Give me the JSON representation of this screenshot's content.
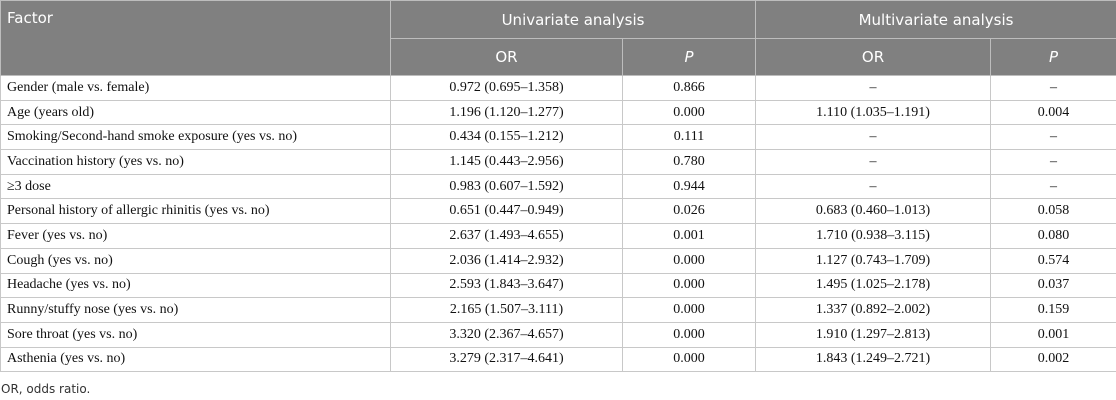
{
  "table": {
    "factor_header": "Factor",
    "groups": [
      "Univariate analysis",
      "Multivariate analysis"
    ],
    "subheaders": [
      "OR",
      "P",
      "OR",
      "P"
    ],
    "rows": [
      [
        "Gender (male vs. female)",
        "0.972 (0.695–1.358)",
        "0.866",
        "–",
        "–"
      ],
      [
        "Age (years old)",
        "1.196 (1.120–1.277)",
        "0.000",
        "1.110 (1.035–1.191)",
        "0.004"
      ],
      [
        "Smoking/Second-hand smoke exposure (yes vs. no)",
        "0.434 (0.155–1.212)",
        "0.111",
        "–",
        "–"
      ],
      [
        "Vaccination history (yes vs. no)",
        "1.145 (0.443–2.956)",
        "0.780",
        "–",
        "–"
      ],
      [
        "≥3 dose",
        "0.983 (0.607–1.592)",
        "0.944",
        "–",
        "–"
      ],
      [
        "Personal history of allergic rhinitis (yes vs. no)",
        "0.651 (0.447–0.949)",
        "0.026",
        "0.683 (0.460–1.013)",
        "0.058"
      ],
      [
        "Fever (yes vs. no)",
        "2.637 (1.493–4.655)",
        "0.001",
        "1.710 (0.938–3.115)",
        "0.080"
      ],
      [
        "Cough (yes vs. no)",
        "2.036 (1.414–2.932)",
        "0.000",
        "1.127 (0.743–1.709)",
        "0.574"
      ],
      [
        "Headache (yes vs. no)",
        "2.593 (1.843–3.647)",
        "0.000",
        "1.495 (1.025–2.178)",
        "0.037"
      ],
      [
        "Runny/stuffy nose (yes vs. no)",
        "2.165 (1.507–3.111)",
        "0.000",
        "1.337 (0.892–2.002)",
        "0.159"
      ],
      [
        "Sore throat (yes vs. no)",
        "3.320 (2.367–4.657)",
        "0.000",
        "1.910 (1.297–2.813)",
        "0.001"
      ],
      [
        "Asthenia (yes vs. no)",
        "3.279 (2.317–4.641)",
        "0.000",
        "1.843 (1.249–2.721)",
        "0.002"
      ]
    ]
  },
  "footnote": "OR, odds ratio."
}
